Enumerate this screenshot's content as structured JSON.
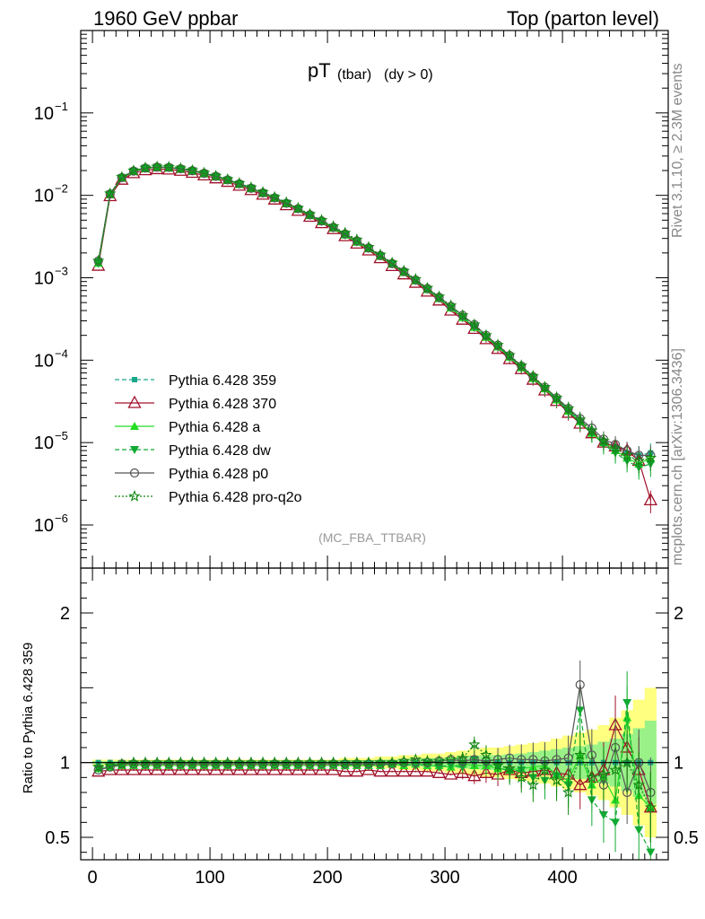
{
  "header": {
    "left": "1960 GeV ppbar",
    "right": "Top (parton level)"
  },
  "plot_title": {
    "main": "pT",
    "sub1": "(tbar)",
    "sub2": "(dy > 0)"
  },
  "side_labels": {
    "rivet": "Rivet 3.1.10, ≥ 2.3M events",
    "mcplots": "mcplots.cern.ch [arXiv:1306.3436]"
  },
  "analysis_id": "(MC_FBA_TTBAR)",
  "ratio_ylabel": "Ratio to Pythia 6.428 359",
  "colors": {
    "s359": "#1aa88a",
    "s370": "#a0102a",
    "sa": "#22dd22",
    "sdw": "#11aa33",
    "sp0": "#555555",
    "sq2o": "#118811",
    "band_yellow": "#ffff80",
    "band_green": "#88ee88"
  },
  "chart_data": [
    {
      "type": "line",
      "title": "pT (tbar) (dy > 0)",
      "yscale": "log",
      "xlim": [
        -10,
        490
      ],
      "ylim": [
        3e-07,
        1
      ],
      "yticks": [
        "10^-6",
        "10^-5",
        "10^-4",
        "10^-3",
        "10^-2",
        "10^-1"
      ],
      "x": [
        5,
        15,
        25,
        35,
        45,
        55,
        65,
        75,
        85,
        95,
        105,
        115,
        125,
        135,
        145,
        155,
        165,
        175,
        185,
        195,
        205,
        215,
        225,
        235,
        245,
        255,
        265,
        275,
        285,
        295,
        305,
        315,
        325,
        335,
        345,
        355,
        365,
        375,
        385,
        395,
        405,
        415,
        425,
        435,
        445,
        455,
        465,
        475
      ],
      "series": [
        {
          "name": "Pythia 6.428 359",
          "style": "dashed",
          "marker": "square",
          "values": [
            0.0016,
            0.0105,
            0.0165,
            0.0198,
            0.0215,
            0.0221,
            0.0219,
            0.0211,
            0.02,
            0.0186,
            0.0171,
            0.0155,
            0.0139,
            0.0123,
            0.0108,
            0.0094,
            0.0081,
            0.0069,
            0.0058,
            0.0049,
            0.0041,
            0.0034,
            0.0028,
            0.0023,
            0.00185,
            0.00148,
            0.00118,
            0.00093,
            0.00073,
            0.00057,
            0.00044,
            0.00034,
            0.00026,
            0.000195,
            0.000148,
            0.000111,
            8.3e-05,
            6.2e-05,
            4.6e-05,
            3.4e-05,
            2.5e-05,
            1.85e-05,
            1.4e-05,
            1.05e-05,
            9e-06,
            7.5e-06,
            7e-06,
            7.5e-06
          ]
        },
        {
          "name": "Pythia 6.428 370",
          "style": "solid",
          "marker": "triangle-open",
          "values": [
            0.0014,
            0.0098,
            0.0155,
            0.0186,
            0.0202,
            0.0208,
            0.0206,
            0.0199,
            0.0188,
            0.0175,
            0.0161,
            0.0146,
            0.0131,
            0.0116,
            0.0102,
            0.0089,
            0.0076,
            0.0065,
            0.0055,
            0.0046,
            0.0039,
            0.0032,
            0.0026,
            0.00215,
            0.00173,
            0.00139,
            0.0011,
            0.00087,
            0.00068,
            0.00053,
            0.0004,
            0.00031,
            0.00024,
            0.00018,
            0.000137,
            0.000103,
            7.8e-05,
            5.8e-05,
            4.3e-05,
            3.2e-05,
            2.3e-05,
            1.7e-05,
            1.3e-05,
            1e-05,
            9e-06,
            8e-06,
            6e-06,
            2e-06
          ]
        },
        {
          "name": "Pythia 6.428 a",
          "style": "solid",
          "marker": "triangle",
          "values": [
            0.0015,
            0.0102,
            0.0162,
            0.0195,
            0.0212,
            0.0218,
            0.0216,
            0.0208,
            0.0197,
            0.0183,
            0.0168,
            0.0152,
            0.0136,
            0.0121,
            0.0106,
            0.0092,
            0.0079,
            0.0068,
            0.0057,
            0.0048,
            0.004,
            0.0033,
            0.0027,
            0.00225,
            0.00182,
            0.00146,
            0.00116,
            0.00092,
            0.00072,
            0.00056,
            0.00043,
            0.00033,
            0.00025,
            0.00019,
            0.000145,
            0.000109,
            8.1e-05,
            6e-05,
            4.5e-05,
            3.3e-05,
            2.4e-05,
            1.8e-05,
            1.3e-05,
            1e-05,
            8e-06,
            6.5e-06,
            5.5e-06,
            6.5e-06
          ]
        },
        {
          "name": "Pythia 6.428 dw",
          "style": "dashed",
          "marker": "triangle-down",
          "values": [
            0.0015,
            0.0103,
            0.0163,
            0.0196,
            0.0213,
            0.0219,
            0.0217,
            0.0209,
            0.0198,
            0.0184,
            0.0169,
            0.0153,
            0.0137,
            0.0122,
            0.0107,
            0.0093,
            0.008,
            0.0068,
            0.0057,
            0.0048,
            0.004,
            0.0033,
            0.0027,
            0.00225,
            0.00183,
            0.00147,
            0.00117,
            0.00092,
            0.00072,
            0.00056,
            0.00043,
            0.00033,
            0.00025,
            0.00019,
            0.000146,
            0.00011,
            8.2e-05,
            6.1e-05,
            4.5e-05,
            3.3e-05,
            2.4e-05,
            1.75e-05,
            1.3e-05,
            9.5e-06,
            7.5e-06,
            6e-06,
            5e-06,
            5.5e-06
          ]
        },
        {
          "name": "Pythia 6.428 p0",
          "style": "solid",
          "marker": "circle-open",
          "values": [
            0.0016,
            0.0104,
            0.0164,
            0.0197,
            0.0214,
            0.022,
            0.0218,
            0.021,
            0.0199,
            0.0185,
            0.017,
            0.0154,
            0.0138,
            0.0122,
            0.0107,
            0.0093,
            0.008,
            0.0069,
            0.0058,
            0.0049,
            0.0041,
            0.0034,
            0.0028,
            0.0023,
            0.00186,
            0.00149,
            0.00119,
            0.00094,
            0.00074,
            0.00058,
            0.00045,
            0.00035,
            0.00027,
            0.0002,
            0.000152,
            0.000114,
            8.5e-05,
            6.3e-05,
            4.7e-05,
            3.5e-05,
            2.6e-05,
            1.95e-05,
            1.5e-05,
            1.1e-05,
            9.5e-06,
            8e-06,
            7e-06,
            7e-06
          ]
        },
        {
          "name": "Pythia 6.428 pro-q2o",
          "style": "dotted",
          "marker": "star-open",
          "values": [
            0.0016,
            0.0105,
            0.0166,
            0.0199,
            0.0216,
            0.0222,
            0.022,
            0.0212,
            0.0201,
            0.0187,
            0.0172,
            0.0156,
            0.014,
            0.0124,
            0.0109,
            0.0095,
            0.0082,
            0.007,
            0.0059,
            0.005,
            0.0042,
            0.0035,
            0.0029,
            0.00235,
            0.0019,
            0.00152,
            0.00121,
            0.00096,
            0.00075,
            0.00059,
            0.00046,
            0.00035,
            0.00027,
            0.0002,
            0.000153,
            0.000115,
            8.6e-05,
            6.4e-05,
            4.7e-05,
            3.5e-05,
            2.6e-05,
            1.9e-05,
            1.4e-05,
            1.05e-05,
            8.5e-06,
            7e-06,
            6e-06,
            6.5e-06
          ]
        }
      ]
    },
    {
      "type": "line",
      "ylabel": "Ratio to Pythia 6.428 359",
      "xlim": [
        -10,
        490
      ],
      "ylim": [
        0.35,
        2.3
      ],
      "xticks": [
        "0",
        "100",
        "200",
        "300",
        "400"
      ],
      "yticks": [
        "0.5",
        "1",
        "2"
      ],
      "x": [
        5,
        15,
        25,
        35,
        45,
        55,
        65,
        75,
        85,
        95,
        105,
        115,
        125,
        135,
        145,
        155,
        165,
        175,
        185,
        195,
        205,
        215,
        225,
        235,
        245,
        255,
        265,
        275,
        285,
        295,
        305,
        315,
        325,
        335,
        345,
        355,
        365,
        375,
        385,
        395,
        405,
        415,
        425,
        435,
        445,
        455,
        465,
        475
      ],
      "band_yellow_halfwidth": [
        0.02,
        0.02,
        0.02,
        0.02,
        0.02,
        0.02,
        0.02,
        0.02,
        0.02,
        0.02,
        0.02,
        0.02,
        0.02,
        0.02,
        0.02,
        0.02,
        0.02,
        0.02,
        0.02,
        0.02,
        0.02,
        0.03,
        0.03,
        0.03,
        0.04,
        0.04,
        0.05,
        0.05,
        0.06,
        0.06,
        0.07,
        0.08,
        0.09,
        0.1,
        0.1,
        0.11,
        0.12,
        0.13,
        0.14,
        0.16,
        0.18,
        0.2,
        0.22,
        0.25,
        0.3,
        0.35,
        0.42,
        0.5
      ],
      "band_green_halfwidth": [
        0.01,
        0.01,
        0.01,
        0.01,
        0.01,
        0.01,
        0.01,
        0.01,
        0.01,
        0.01,
        0.01,
        0.01,
        0.01,
        0.01,
        0.01,
        0.01,
        0.01,
        0.01,
        0.01,
        0.01,
        0.01,
        0.015,
        0.015,
        0.015,
        0.02,
        0.02,
        0.025,
        0.025,
        0.03,
        0.03,
        0.035,
        0.04,
        0.045,
        0.05,
        0.05,
        0.055,
        0.06,
        0.07,
        0.08,
        0.09,
        0.1,
        0.11,
        0.12,
        0.14,
        0.16,
        0.19,
        0.23,
        0.28
      ],
      "series": [
        {
          "name": "Pythia 6.428 359",
          "values": [
            1,
            1,
            1,
            1,
            1,
            1,
            1,
            1,
            1,
            1,
            1,
            1,
            1,
            1,
            1,
            1,
            1,
            1,
            1,
            1,
            1,
            1,
            1,
            1,
            1,
            1,
            1,
            1,
            1,
            1,
            1,
            1,
            1,
            1,
            1,
            1,
            1,
            1,
            1,
            1,
            1,
            1,
            1,
            1,
            1,
            1,
            1,
            1
          ]
        },
        {
          "name": "Pythia 6.428 370",
          "values": [
            0.94,
            0.95,
            0.95,
            0.95,
            0.95,
            0.95,
            0.95,
            0.95,
            0.95,
            0.95,
            0.95,
            0.95,
            0.95,
            0.95,
            0.95,
            0.95,
            0.95,
            0.95,
            0.95,
            0.95,
            0.95,
            0.94,
            0.94,
            0.95,
            0.94,
            0.94,
            0.94,
            0.94,
            0.94,
            0.93,
            0.92,
            0.93,
            0.91,
            0.93,
            0.92,
            0.95,
            0.93,
            0.94,
            0.95,
            0.93,
            0.92,
            0.85,
            0.9,
            0.95,
            1.25,
            1.1,
            0.95,
            0.7
          ]
        },
        {
          "name": "Pythia 6.428 a",
          "values": [
            0.96,
            0.97,
            0.98,
            0.98,
            0.98,
            0.98,
            0.98,
            0.98,
            0.98,
            0.98,
            0.98,
            0.98,
            0.98,
            0.98,
            0.98,
            0.98,
            0.98,
            0.98,
            0.98,
            0.98,
            0.98,
            0.98,
            0.98,
            0.98,
            0.98,
            0.99,
            0.98,
            0.99,
            0.98,
            0.98,
            0.97,
            0.99,
            0.98,
            0.98,
            0.96,
            0.95,
            0.96,
            0.97,
            0.98,
            0.92,
            0.88,
            1.05,
            0.85,
            0.9,
            0.75,
            1.3,
            0.78,
            0.7
          ]
        },
        {
          "name": "Pythia 6.428 dw",
          "values": [
            0.96,
            0.98,
            0.99,
            0.99,
            0.99,
            0.99,
            0.99,
            0.99,
            0.99,
            0.99,
            0.99,
            0.99,
            0.99,
            0.99,
            0.99,
            0.99,
            0.99,
            0.99,
            0.99,
            0.99,
            0.99,
            0.98,
            0.99,
            0.98,
            0.99,
            0.99,
            0.99,
            0.98,
            0.99,
            0.97,
            0.98,
            0.97,
            1.02,
            0.99,
            0.97,
            0.94,
            0.95,
            0.9,
            0.88,
            0.91,
            0.85,
            1.35,
            0.75,
            0.65,
            0.6,
            1.4,
            0.55,
            0.4
          ]
        },
        {
          "name": "Pythia 6.428 p0",
          "values": [
            0.95,
            0.97,
            0.99,
            0.99,
            0.99,
            0.99,
            0.99,
            0.99,
            0.99,
            0.99,
            0.99,
            0.99,
            0.99,
            0.99,
            0.99,
            0.99,
            0.99,
            0.99,
            0.99,
            0.99,
            0.99,
            0.99,
            0.99,
            0.99,
            0.99,
            0.99,
            1,
            1,
            1,
            1.01,
            1.02,
            1.01,
            1.02,
            1.01,
            1.02,
            1.03,
            1.02,
            1.02,
            1.01,
            1.02,
            1.03,
            1.52,
            1.05,
            0.85,
            1.1,
            0.8,
            1,
            0.8
          ]
        },
        {
          "name": "Pythia 6.428 pro-q2o",
          "values": [
            0.97,
            0.98,
            0.99,
            1,
            1,
            1,
            1,
            1,
            1,
            1,
            1,
            1,
            1,
            1,
            1,
            1,
            1,
            1,
            1,
            1,
            1,
            1,
            1,
            1,
            1,
            1,
            1.01,
            1.02,
            1.01,
            1.01,
            1.02,
            1.03,
            1.12,
            1.05,
            0.98,
            0.96,
            0.9,
            0.85,
            0.95,
            0.88,
            0.8,
            1.05,
            0.9,
            0.92,
            0.95,
            1,
            0.85,
            0.7
          ]
        }
      ]
    }
  ]
}
